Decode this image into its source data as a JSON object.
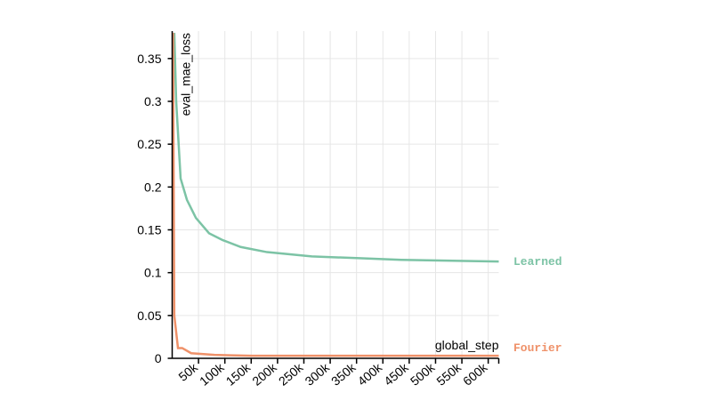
{
  "chart_data": {
    "type": "line",
    "xlabel": "global_step",
    "ylabel": "eval_mae_loss",
    "xlim": [
      0,
      620000
    ],
    "ylim": [
      0,
      0.382
    ],
    "xticks": [
      {
        "value": 50000,
        "label": "50k"
      },
      {
        "value": 100000,
        "label": "100k"
      },
      {
        "value": 150000,
        "label": "150k"
      },
      {
        "value": 200000,
        "label": "200k"
      },
      {
        "value": 250000,
        "label": "250k"
      },
      {
        "value": 300000,
        "label": "300k"
      },
      {
        "value": 350000,
        "label": "350k"
      },
      {
        "value": 400000,
        "label": "400k"
      },
      {
        "value": 450000,
        "label": "450k"
      },
      {
        "value": 500000,
        "label": "500k"
      },
      {
        "value": 550000,
        "label": "550k"
      },
      {
        "value": 600000,
        "label": "600k"
      }
    ],
    "yticks": [
      0,
      0.05,
      0.1,
      0.15,
      0.2,
      0.25,
      0.3,
      0.35
    ],
    "grid": true,
    "series": [
      {
        "name": "Learned",
        "color": "#7cc3a5",
        "x": [
          4000,
          7600,
          16000,
          28000,
          45000,
          70000,
          96000,
          130000,
          180000,
          265000,
          350000,
          435000,
          520000,
          620000
        ],
        "values": [
          0.38,
          0.3,
          0.21,
          0.185,
          0.164,
          0.146,
          0.138,
          0.13,
          0.124,
          0.119,
          0.117,
          0.115,
          0.114,
          0.113
        ]
      },
      {
        "name": "Fourier",
        "color": "#ef9169",
        "x": [
          1500,
          4000,
          11000,
          19000,
          36000,
          80000,
          150000,
          620000
        ],
        "values": [
          0.38,
          0.05,
          0.012,
          0.012,
          0.006,
          0.004,
          0.003,
          0.003
        ]
      }
    ]
  }
}
